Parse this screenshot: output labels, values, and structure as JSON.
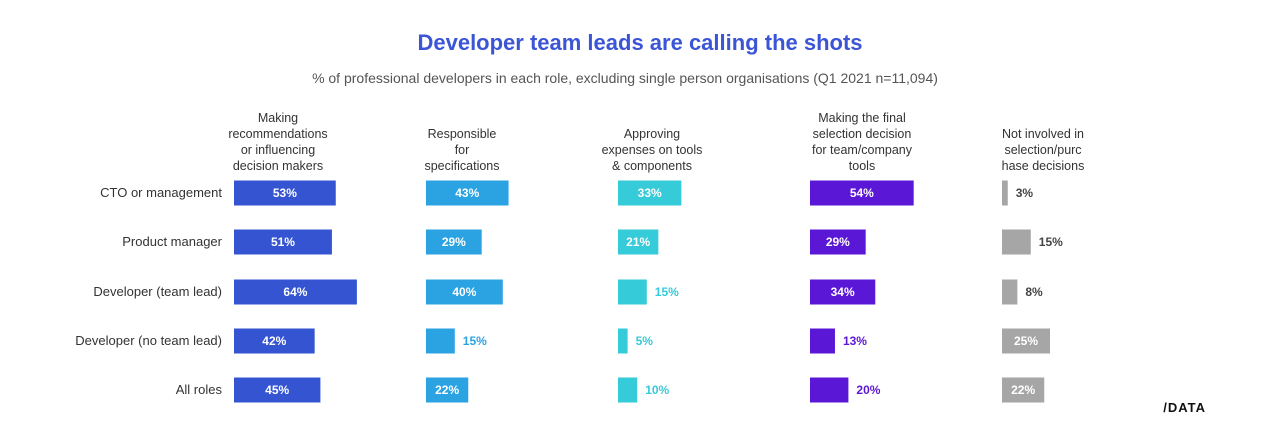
{
  "header": {
    "title": "Developer team leads are calling the shots",
    "subtitle": "% of professional developers in each role, excluding single person organisations (Q1 2021 n=11,094)"
  },
  "brand": "/DATA",
  "chart_data": {
    "type": "bar",
    "categories": [
      "CTO or management",
      "Product manager",
      "Developer (team lead)",
      "Developer (no team lead)",
      "All roles"
    ],
    "series": [
      {
        "name": "Making recommendations or influencing decision makers",
        "header_lines": [
          "Making",
          "recommendations",
          "or influencing",
          "decision makers"
        ],
        "values": [
          53,
          51,
          64,
          42,
          45
        ],
        "labels": [
          "53%",
          "51%",
          "64%",
          "42%",
          "45%"
        ],
        "color": "#3454d1"
      },
      {
        "name": "Responsible for specifications",
        "header_lines": [
          "Responsible",
          "for",
          "specifications"
        ],
        "values": [
          43,
          29,
          40,
          15,
          22
        ],
        "labels": [
          "43%",
          "29%",
          "40%",
          "15%",
          "22%"
        ],
        "color": "#2ba3e3"
      },
      {
        "name": "Approving expenses on tools & components",
        "header_lines": [
          "Approving",
          "expenses on tools",
          "& components"
        ],
        "values": [
          33,
          21,
          15,
          5,
          10
        ],
        "labels": [
          "33%",
          "21%",
          "15%",
          "5%",
          "10%"
        ],
        "color": "#35cbd8"
      },
      {
        "name": "Making the final selection decision for team/company tools",
        "header_lines": [
          "Making the final",
          "selection decision",
          "for team/company",
          "tools"
        ],
        "values": [
          54,
          29,
          34,
          13,
          20
        ],
        "labels": [
          "54%",
          "29%",
          "34%",
          "13%",
          "20%"
        ],
        "color": "#5b17d6"
      },
      {
        "name": "Not involved in selection/purchase decisions",
        "header_lines": [
          "Not involved in",
          "selection/purc",
          "hase decisions"
        ],
        "values": [
          3,
          15,
          8,
          25,
          22
        ],
        "labels": [
          "3%",
          "15%",
          "8%",
          "25%",
          "22%"
        ],
        "color": "#a6a6a6"
      }
    ],
    "xlim": [
      0,
      100
    ],
    "grid": false,
    "legend": "none"
  }
}
